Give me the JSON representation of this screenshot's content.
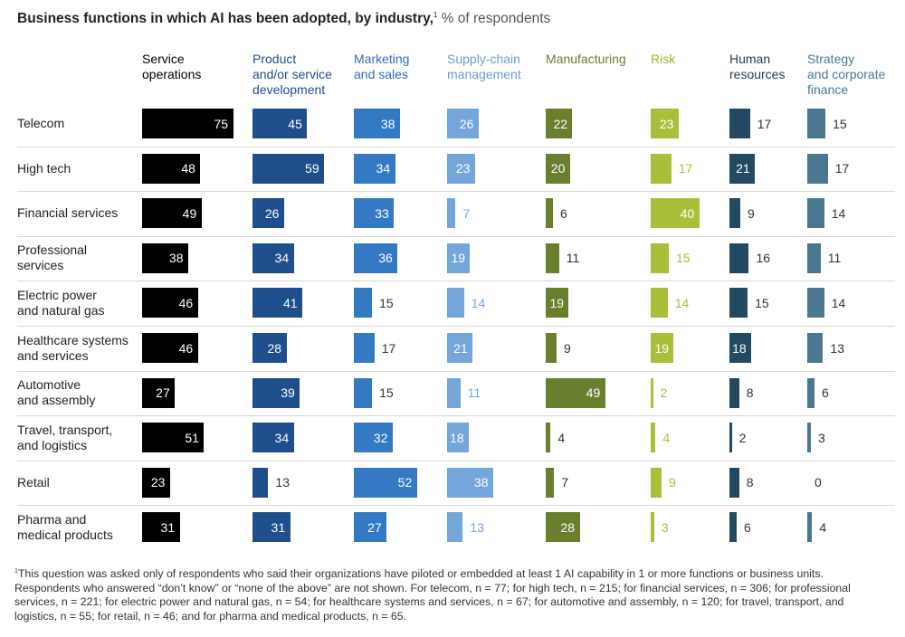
{
  "chart_data": {
    "type": "table",
    "title": "Business functions in which AI has been adopted, by industry,",
    "title_footnote_mark": "1",
    "units": "% of respondents",
    "columns": [
      {
        "label": "Service\noperations",
        "color": "#000000",
        "label_color": "#000000"
      },
      {
        "label": "Product\nand/or service\ndevelopment",
        "color": "#1f4e8c",
        "label_color": "#1f4e8c"
      },
      {
        "label": "Marketing\nand sales",
        "color": "#3479c4",
        "label_color": "#2f6fb5"
      },
      {
        "label": "Supply-chain\nmanagement",
        "color": "#74a6dc",
        "label_color": "#6a9ed6"
      },
      {
        "label": "Manufacturing",
        "color": "#6a7f2e",
        "label_color": "#6a7f2e"
      },
      {
        "label": "Risk",
        "color": "#a9bf3a",
        "label_color": "#a0b53a"
      },
      {
        "label": "Human\nresources",
        "color": "#244a63",
        "label_color": "#1f3d52"
      },
      {
        "label": "Strategy\nand corporate\nfinance",
        "color": "#4b7890",
        "label_color": "#4b7890"
      }
    ],
    "rows": [
      {
        "label": "Telecom",
        "values": [
          75,
          45,
          38,
          26,
          22,
          23,
          17,
          15
        ]
      },
      {
        "label": "High tech",
        "values": [
          48,
          59,
          34,
          23,
          20,
          17,
          21,
          17
        ]
      },
      {
        "label": "Financial services",
        "values": [
          49,
          26,
          33,
          7,
          6,
          40,
          9,
          14
        ]
      },
      {
        "label": "Professional\nservices",
        "values": [
          38,
          34,
          36,
          19,
          11,
          15,
          16,
          11
        ]
      },
      {
        "label": "Electric power\nand natural gas",
        "values": [
          46,
          41,
          15,
          14,
          19,
          14,
          15,
          14
        ]
      },
      {
        "label": "Healthcare systems\nand services",
        "values": [
          46,
          28,
          17,
          21,
          9,
          19,
          18,
          13
        ]
      },
      {
        "label": "Automotive\nand assembly",
        "values": [
          27,
          39,
          15,
          11,
          49,
          2,
          8,
          6
        ]
      },
      {
        "label": "Travel, transport,\nand logistics",
        "values": [
          51,
          34,
          32,
          18,
          4,
          4,
          2,
          3
        ]
      },
      {
        "label": "Retail",
        "values": [
          23,
          13,
          52,
          38,
          7,
          9,
          8,
          0
        ]
      },
      {
        "label": "Pharma and\nmedical products",
        "values": [
          31,
          31,
          27,
          13,
          28,
          3,
          6,
          4
        ]
      }
    ]
  },
  "footnote": {
    "mark": "1",
    "text": "This question was asked only of respondents who said their organizations have piloted or embedded at least 1 AI capability in 1 or more functions or business units. Respondents who answered “don’t know” or “none of the above” are not shown. For telecom, n = 77; for high tech, n = 215; for financial services, n = 306; for professional services, n = 221; for electric power and natural gas, n = 54; for healthcare systems and services, n = 67; for automotive and assembly, n = 120; for travel, transport, and logistics, n = 55; for retail, n = 46; and for pharma and medical products, n = 65."
  }
}
